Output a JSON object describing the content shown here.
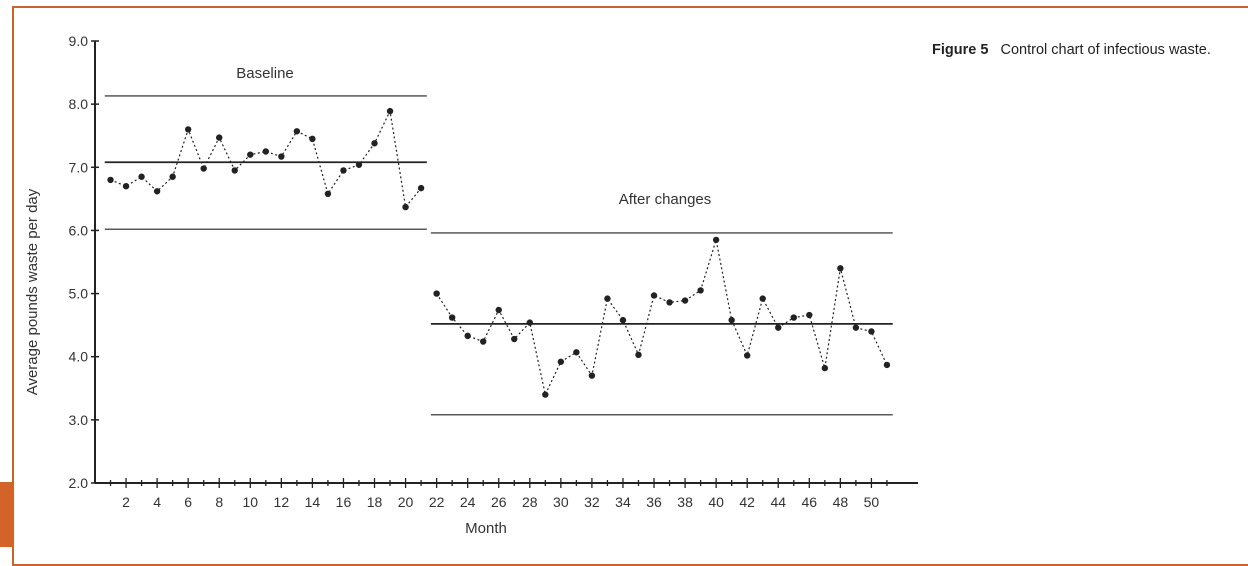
{
  "caption": {
    "figure_label": "Figure 5",
    "text": "Control chart of infectious waste."
  },
  "colors": {
    "accent": "#d4632a",
    "line": "#222222"
  },
  "chart_data": {
    "type": "line",
    "xlabel": "Month",
    "ylabel": "Average pounds waste per day",
    "xlim": [
      0,
      53
    ],
    "ylim": [
      2.0,
      9.0
    ],
    "y_ticks": [
      "2.0",
      "3.0",
      "4.0",
      "5.0",
      "6.0",
      "7.0",
      "8.0",
      "9.0"
    ],
    "x_ticks": [
      2,
      4,
      6,
      8,
      10,
      12,
      14,
      16,
      18,
      20,
      22,
      24,
      26,
      28,
      30,
      32,
      34,
      36,
      38,
      40,
      42,
      44,
      46,
      48,
      50
    ],
    "grid": false,
    "series": [
      {
        "label": "Baseline",
        "x": [
          1,
          2,
          3,
          4,
          5,
          6,
          7,
          8,
          9,
          10,
          11,
          12,
          13,
          14,
          15,
          16,
          17,
          18,
          19,
          20,
          21
        ],
        "values": [
          6.8,
          6.7,
          6.85,
          6.62,
          6.85,
          7.6,
          6.98,
          7.47,
          6.95,
          7.2,
          7.25,
          7.17,
          7.57,
          7.45,
          6.58,
          6.95,
          7.04,
          7.38,
          7.89,
          6.37,
          6.67
        ],
        "center_line": 7.08,
        "upper_limit": 8.13,
        "lower_limit": 6.02
      },
      {
        "label": "After changes",
        "x": [
          22,
          23,
          24,
          25,
          26,
          27,
          28,
          29,
          30,
          31,
          32,
          33,
          34,
          35,
          36,
          37,
          38,
          39,
          40,
          41,
          42,
          43,
          44,
          45,
          46,
          47,
          48,
          49,
          50,
          51
        ],
        "values": [
          5.0,
          4.62,
          4.33,
          4.24,
          4.74,
          4.28,
          4.54,
          3.4,
          3.92,
          4.07,
          3.7,
          4.92,
          4.58,
          4.03,
          4.97,
          4.86,
          4.89,
          5.05,
          5.85,
          4.58,
          4.02,
          4.92,
          4.46,
          4.62,
          4.66,
          3.82,
          5.4,
          4.46,
          4.4,
          3.87
        ],
        "center_line": 4.52,
        "upper_limit": 5.96,
        "lower_limit": 3.08
      }
    ]
  }
}
